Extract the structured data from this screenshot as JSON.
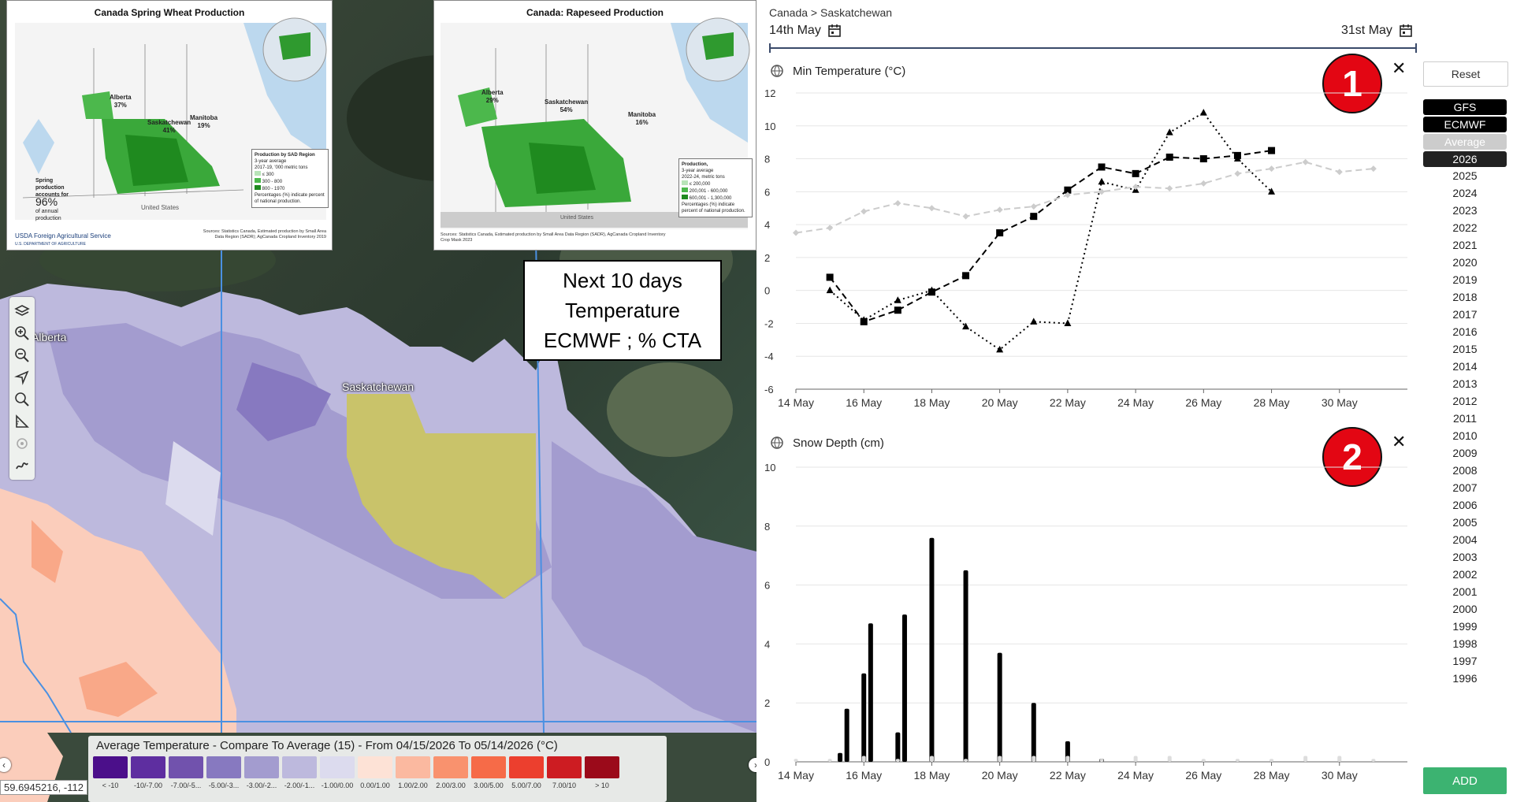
{
  "map": {
    "labels": {
      "alberta": "Alberta",
      "saskatchewan": "Saskatchewan"
    },
    "coordinates": "59.6945216, -112",
    "legend": {
      "title": "Average Temperature - Compare To Average (15) - From 04/15/2026 To 05/14/2026 (°C)",
      "classes": [
        {
          "label": "< -10",
          "color": "#4b0f8a"
        },
        {
          "label": "-10/-7.00",
          "color": "#5e2ea0"
        },
        {
          "label": "-7.00/-5...",
          "color": "#7152ad"
        },
        {
          "label": "-5.00/-3...",
          "color": "#8779c0"
        },
        {
          "label": "-3.00/-2...",
          "color": "#a39ccf"
        },
        {
          "label": "-2.00/-1...",
          "color": "#bdb9dd"
        },
        {
          "label": "-1.00/0.00",
          "color": "#dcdbee"
        },
        {
          "label": "0.00/1.00",
          "color": "#fde2d6"
        },
        {
          "label": "1.00/2.00",
          "color": "#fbb9a0"
        },
        {
          "label": "2.00/3.00",
          "color": "#f9926e"
        },
        {
          "label": "3.00/5.00",
          "color": "#f66b48"
        },
        {
          "label": "5.00/7.00",
          "color": "#ec3f2e"
        },
        {
          "label": "7.00/10",
          "color": "#cd1c22"
        },
        {
          "label": "> 10",
          "color": "#9b0a1a"
        }
      ]
    },
    "callout": {
      "line1": "Next 10 days",
      "line2": "Temperature",
      "line3": "ECMWF ; % CTA"
    }
  },
  "inset_wheat": {
    "title": "Canada Spring Wheat Production",
    "alberta": "Alberta",
    "alberta_pct": "37%",
    "saskatchewan": "Saskatchewan",
    "saskatchewan_pct": "41%",
    "manitoba": "Manitoba",
    "manitoba_pct": "19%",
    "legend_title": "Production by SAD Region",
    "legend_sub": "3-year average",
    "legend_sub2": "2017-19, '000 metric tons",
    "legend_items": [
      "≤ 300",
      "300 - 800",
      "800 - 1970"
    ],
    "legend_note": "Percentages (%) indicate percent of national production.",
    "spring_text": "Spring production accounts for",
    "spring_pct": "96%",
    "spring_text2": "of annual production",
    "us_label": "United States",
    "agency": "Foreign Agricultural Service",
    "agency_sub": "U.S. DEPARTMENT OF AGRICULTURE",
    "sources": "Sources: Statistics Canada, Estimated production by Small Area Data Region (SADR); AgCanada Cropland Inventory 2019"
  },
  "inset_rapeseed": {
    "title": "Canada: Rapeseed Production",
    "alberta": "Alberta",
    "alberta_pct": "29%",
    "saskatchewan": "Saskatchewan",
    "saskatchewan_pct": "54%",
    "manitoba": "Manitoba",
    "manitoba_pct": "16%",
    "legend_title": "Production,",
    "legend_sub": "3-year average",
    "legend_sub2": "2022-24, metric tons",
    "legend_items": [
      "≤ 200,000",
      "200,001 - 600,000",
      "600,001 - 1,300,000"
    ],
    "legend_note": "Percentages (%) indicate percent of national production.",
    "us_label": "United States",
    "sources": "Sources: Statistics Canada, Estimated production by Small Area Data Region (SADR), AgCanada Cropland Inventory Crop Mask 2023"
  },
  "panel": {
    "breadcrumb": "Canada > Saskatchewan",
    "start_date": "14th May",
    "end_date": "31st May",
    "reset_label": "Reset",
    "add_label": "ADD",
    "models": [
      {
        "label": "GFS",
        "bg": "#000000",
        "fg": "#ffffff"
      },
      {
        "label": "ECMWF",
        "bg": "#000000",
        "fg": "#ffffff"
      },
      {
        "label": "Average",
        "bg": "#cccccc",
        "fg": "#ffffff"
      },
      {
        "label": "2026",
        "bg": "#222222",
        "fg": "#ffffff"
      }
    ],
    "years": [
      "2025",
      "2024",
      "2023",
      "2022",
      "2021",
      "2020",
      "2019",
      "2018",
      "2017",
      "2016",
      "2015",
      "2014",
      "2013",
      "2012",
      "2011",
      "2010",
      "2009",
      "2008",
      "2007",
      "2006",
      "2005",
      "2004",
      "2003",
      "2002",
      "2001",
      "2000",
      "1999",
      "1998",
      "1997",
      "1996"
    ],
    "badge1": "1",
    "badge2": "2"
  },
  "chart_data": [
    {
      "type": "line",
      "title": "Min Temperature (°C)",
      "ylim": [
        -6,
        12
      ],
      "yticks": [
        -6,
        -4,
        -2,
        0,
        2,
        4,
        6,
        8,
        10,
        12
      ],
      "xticks": [
        "14 May",
        "16 May",
        "18 May",
        "20 May",
        "22 May",
        "24 May",
        "26 May",
        "28 May",
        "30 May"
      ],
      "x_start_day": 14,
      "series": [
        {
          "name": "GFS",
          "style": "dotted",
          "marker": "triangle",
          "color": "#000000",
          "x": [
            15,
            16,
            17,
            18,
            19,
            20,
            21,
            22,
            23,
            24,
            25,
            26,
            27,
            28
          ],
          "values": [
            0.0,
            -1.8,
            -0.6,
            0.0,
            -2.2,
            -3.6,
            -1.9,
            -2.0,
            6.6,
            6.1,
            9.6,
            10.8,
            8.0,
            6.0
          ]
        },
        {
          "name": "ECMWF",
          "style": "dashed",
          "marker": "square",
          "color": "#000000",
          "x": [
            15,
            16,
            17,
            18,
            19,
            20,
            21,
            22,
            23,
            24,
            25,
            26,
            27,
            28
          ],
          "values": [
            0.8,
            -1.9,
            -1.2,
            -0.1,
            0.9,
            3.5,
            4.5,
            6.1,
            7.5,
            7.1,
            8.1,
            8.0,
            8.2,
            8.5
          ]
        },
        {
          "name": "Average",
          "style": "dashed",
          "marker": "diamond",
          "color": "#cccccc",
          "x": [
            14,
            15,
            16,
            17,
            18,
            19,
            20,
            21,
            22,
            23,
            24,
            25,
            26,
            27,
            28,
            29,
            30,
            31
          ],
          "values": [
            3.5,
            3.8,
            4.8,
            5.3,
            5.0,
            4.5,
            4.9,
            5.1,
            5.8,
            6.0,
            6.3,
            6.2,
            6.5,
            7.1,
            7.4,
            7.8,
            7.2,
            7.4
          ]
        }
      ]
    },
    {
      "type": "bar",
      "title": "Snow Depth (cm)",
      "ylim": [
        0,
        10
      ],
      "yticks": [
        0,
        2,
        4,
        6,
        8,
        10
      ],
      "xticks": [
        "14 May",
        "16 May",
        "18 May",
        "20 May",
        "22 May",
        "24 May",
        "26 May",
        "28 May",
        "30 May"
      ],
      "x_start_day": 14,
      "series": [
        {
          "name": "2026",
          "color": "#000000",
          "x": [
            15.3,
            15.5,
            16.0,
            16.2,
            17.0,
            17.2,
            18.0,
            19.0,
            20.0,
            21.0,
            22.0,
            23.0
          ],
          "values": [
            0.3,
            1.8,
            3.0,
            4.7,
            1.0,
            5.0,
            7.6,
            6.5,
            3.7,
            2.0,
            0.7,
            0.1
          ]
        },
        {
          "name": "Average",
          "color": "#dddddd",
          "x": [
            14,
            15,
            16,
            17,
            18,
            19,
            20,
            21,
            22,
            23,
            24,
            25,
            26,
            27,
            28,
            29,
            30,
            31
          ],
          "values": [
            0.1,
            0.1,
            0.2,
            0.1,
            0.2,
            0.1,
            0.2,
            0.2,
            0.2,
            0.1,
            0.2,
            0.2,
            0.1,
            0.1,
            0.1,
            0.2,
            0.2,
            0.1
          ]
        }
      ]
    }
  ]
}
